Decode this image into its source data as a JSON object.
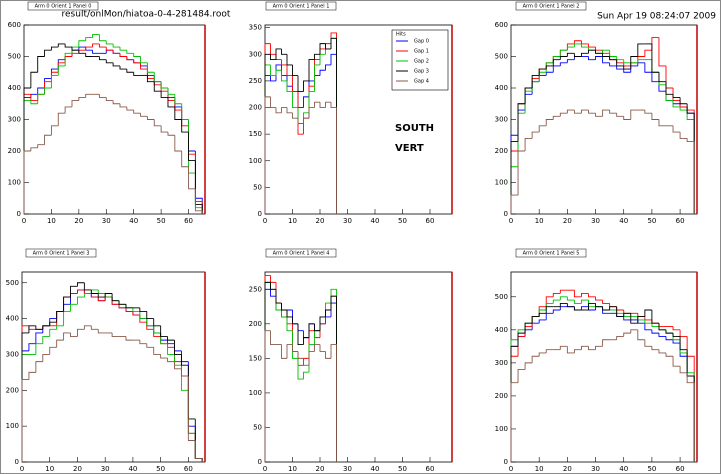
{
  "header": {
    "file": "result/onlMon/hiatoa-0-4-281484.root",
    "timestamp": "Sun Apr 19 08:24:07 2009"
  },
  "chart_data": [
    {
      "type": "histogram",
      "title": "Arm 0 Orient 1 Panel 0",
      "xlim": [
        0,
        66
      ],
      "ylim": [
        0,
        600
      ],
      "xticks": [
        0,
        10,
        20,
        30,
        40,
        50,
        60
      ],
      "yticks": [
        0,
        100,
        200,
        300,
        400,
        500,
        600
      ],
      "bins": [
        0,
        2.5,
        5,
        7.5,
        10,
        12.5,
        15,
        17.5,
        20,
        22.5,
        25,
        27.5,
        30,
        32.5,
        35,
        37.5,
        40,
        42.5,
        45,
        47.5,
        50,
        52.5,
        55,
        57.5,
        60,
        62.5,
        65
      ],
      "series": [
        {
          "name": "Gap 0",
          "color": "#0000ff",
          "values": [
            370,
            380,
            400,
            430,
            460,
            490,
            500,
            520,
            530,
            520,
            510,
            510,
            520,
            510,
            500,
            490,
            480,
            470,
            440,
            420,
            400,
            370,
            340,
            300,
            200,
            50
          ]
        },
        {
          "name": "Gap 1",
          "color": "#ff0000",
          "values": [
            380,
            360,
            380,
            420,
            450,
            480,
            500,
            510,
            520,
            530,
            540,
            530,
            520,
            510,
            500,
            490,
            480,
            460,
            430,
            410,
            390,
            360,
            330,
            280,
            190,
            40
          ]
        },
        {
          "name": "Gap 2",
          "color": "#00c000",
          "values": [
            360,
            350,
            380,
            400,
            440,
            470,
            510,
            530,
            550,
            560,
            570,
            550,
            540,
            530,
            520,
            510,
            500,
            480,
            450,
            420,
            400,
            380,
            350,
            300,
            130,
            20
          ]
        },
        {
          "name": "Gap 3",
          "color": "#000000",
          "values": [
            400,
            450,
            500,
            520,
            530,
            540,
            530,
            520,
            510,
            500,
            500,
            490,
            480,
            470,
            460,
            450,
            440,
            440,
            420,
            390,
            370,
            340,
            300,
            260,
            170,
            30
          ]
        },
        {
          "name": "Gap 4",
          "color": "#8b5a4a",
          "values": [
            200,
            210,
            220,
            250,
            280,
            320,
            340,
            360,
            370,
            380,
            380,
            370,
            360,
            350,
            340,
            330,
            320,
            310,
            300,
            280,
            260,
            250,
            200,
            150,
            80,
            10
          ]
        }
      ]
    },
    {
      "type": "histogram",
      "title": "Arm 0 Orient 1 Panel 1",
      "xlim": [
        0,
        68
      ],
      "ylim": [
        0,
        355
      ],
      "xticks": [
        0,
        10,
        20,
        30,
        40,
        50,
        60
      ],
      "yticks": [
        0,
        50,
        100,
        150,
        200,
        250,
        300,
        350
      ],
      "legend_title": "Hits",
      "annotations": [
        "SOUTH",
        "VERT"
      ],
      "bins": [
        0,
        2,
        4,
        6,
        8,
        10,
        12,
        14,
        16,
        18,
        20,
        22,
        24,
        26
      ],
      "series": [
        {
          "name": "Gap 0",
          "color": "#0000ff",
          "values": [
            260,
            250,
            280,
            260,
            240,
            230,
            200,
            220,
            250,
            260,
            270,
            280,
            300
          ]
        },
        {
          "name": "Gap 1",
          "color": "#ff0000",
          "values": [
            320,
            300,
            290,
            280,
            260,
            230,
            150,
            180,
            240,
            290,
            310,
            320,
            340
          ]
        },
        {
          "name": "Gap 2",
          "color": "#00c000",
          "values": [
            280,
            260,
            270,
            250,
            230,
            200,
            170,
            190,
            230,
            280,
            300,
            310,
            330
          ]
        },
        {
          "name": "Gap 3",
          "color": "#000000",
          "values": [
            300,
            290,
            310,
            300,
            280,
            260,
            230,
            250,
            290,
            300,
            320,
            310,
            330
          ]
        },
        {
          "name": "Gap 4",
          "color": "#8b5a4a",
          "values": [
            220,
            200,
            190,
            200,
            190,
            180,
            170,
            180,
            200,
            210,
            200,
            210,
            200
          ]
        }
      ]
    },
    {
      "type": "histogram",
      "title": "Arm 0 Orient 1 Panel 2",
      "xlim": [
        0,
        66
      ],
      "ylim": [
        0,
        600
      ],
      "xticks": [
        0,
        10,
        20,
        30,
        40,
        50,
        60
      ],
      "yticks": [
        0,
        100,
        200,
        300,
        400,
        500,
        600
      ],
      "bins": [
        0,
        2.5,
        5,
        7.5,
        10,
        12.5,
        15,
        17.5,
        20,
        22.5,
        25,
        27.5,
        30,
        32.5,
        35,
        37.5,
        40,
        42.5,
        45,
        47.5,
        50,
        52.5,
        55,
        57.5,
        60,
        62.5,
        65
      ],
      "series": [
        {
          "name": "Gap 0",
          "color": "#0000ff",
          "values": [
            250,
            330,
            380,
            420,
            440,
            450,
            470,
            480,
            490,
            500,
            500,
            490,
            500,
            480,
            470,
            460,
            450,
            470,
            480,
            450,
            420,
            390,
            360,
            350,
            340,
            320
          ]
        },
        {
          "name": "Gap 1",
          "color": "#ff0000",
          "values": [
            200,
            350,
            400,
            430,
            460,
            480,
            500,
            520,
            540,
            550,
            540,
            530,
            520,
            510,
            490,
            480,
            470,
            480,
            500,
            520,
            560,
            470,
            400,
            360,
            340,
            330
          ]
        },
        {
          "name": "Gap 2",
          "color": "#00c000",
          "values": [
            150,
            320,
            390,
            420,
            450,
            480,
            500,
            520,
            530,
            540,
            530,
            520,
            510,
            520,
            500,
            490,
            480,
            480,
            490,
            490,
            450,
            410,
            360,
            340,
            330,
            300
          ]
        },
        {
          "name": "Gap 3",
          "color": "#000000",
          "values": [
            230,
            350,
            400,
            440,
            460,
            470,
            490,
            500,
            510,
            500,
            510,
            520,
            510,
            500,
            490,
            470,
            460,
            500,
            540,
            540,
            450,
            420,
            380,
            370,
            350,
            320
          ]
        },
        {
          "name": "Gap 4",
          "color": "#8b5a4a",
          "values": [
            60,
            200,
            240,
            260,
            280,
            300,
            310,
            320,
            330,
            320,
            330,
            320,
            310,
            330,
            320,
            310,
            300,
            330,
            330,
            320,
            300,
            280,
            280,
            260,
            240,
            230
          ]
        }
      ]
    },
    {
      "type": "histogram",
      "title": "Arm 0 Orient 1 Panel 3",
      "xlim": [
        0,
        66
      ],
      "ylim": [
        0,
        530
      ],
      "xticks": [
        0,
        10,
        20,
        30,
        40,
        50,
        60
      ],
      "yticks": [
        0,
        100,
        200,
        300,
        400,
        500
      ],
      "bins": [
        0,
        2.5,
        5,
        7.5,
        10,
        12.5,
        15,
        17.5,
        20,
        22.5,
        25,
        27.5,
        30,
        32.5,
        35,
        37.5,
        40,
        42.5,
        45,
        47.5,
        50,
        52.5,
        55,
        57.5,
        60,
        62.5,
        65
      ],
      "series": [
        {
          "name": "Gap 0",
          "color": "#0000ff",
          "values": [
            310,
            330,
            360,
            380,
            400,
            420,
            440,
            470,
            480,
            470,
            460,
            450,
            460,
            440,
            430,
            420,
            410,
            400,
            380,
            360,
            340,
            330,
            310,
            280,
            100,
            10
          ]
        },
        {
          "name": "Gap 1",
          "color": "#ff0000",
          "values": [
            380,
            370,
            370,
            380,
            380,
            420,
            460,
            470,
            480,
            470,
            460,
            450,
            460,
            440,
            430,
            420,
            410,
            390,
            370,
            350,
            330,
            320,
            280,
            240,
            80,
            10
          ]
        },
        {
          "name": "Gap 2",
          "color": "#00c000",
          "values": [
            300,
            300,
            330,
            350,
            370,
            380,
            420,
            440,
            460,
            470,
            480,
            470,
            460,
            450,
            440,
            430,
            420,
            400,
            380,
            360,
            330,
            300,
            270,
            200,
            80,
            10
          ]
        },
        {
          "name": "Gap 3",
          "color": "#000000",
          "values": [
            360,
            380,
            370,
            380,
            390,
            420,
            460,
            490,
            500,
            480,
            470,
            460,
            470,
            450,
            440,
            430,
            430,
            420,
            400,
            380,
            350,
            340,
            300,
            270,
            120,
            10
          ]
        },
        {
          "name": "Gap 4",
          "color": "#8b5a4a",
          "values": [
            230,
            250,
            280,
            300,
            320,
            340,
            360,
            350,
            370,
            380,
            370,
            360,
            360,
            350,
            350,
            340,
            340,
            330,
            320,
            300,
            290,
            280,
            260,
            240,
            60,
            10
          ]
        }
      ]
    },
    {
      "type": "histogram",
      "title": "Arm 0 Orient 1 Panel 4",
      "xlim": [
        0,
        68
      ],
      "ylim": [
        0,
        275
      ],
      "xticks": [
        0,
        10,
        20,
        30,
        40,
        50,
        60
      ],
      "yticks": [
        0,
        50,
        100,
        150,
        200,
        250
      ],
      "bins": [
        0,
        2,
        4,
        6,
        8,
        10,
        12,
        14,
        16,
        18,
        20,
        22,
        24,
        26
      ],
      "series": [
        {
          "name": "Gap 0",
          "color": "#0000ff",
          "values": [
            250,
            240,
            220,
            210,
            220,
            200,
            190,
            180,
            200,
            190,
            200,
            210,
            230
          ]
        },
        {
          "name": "Gap 1",
          "color": "#ff0000",
          "values": [
            270,
            260,
            230,
            220,
            200,
            160,
            140,
            150,
            190,
            180,
            200,
            220,
            240
          ]
        },
        {
          "name": "Gap 2",
          "color": "#00c000",
          "values": [
            260,
            250,
            220,
            210,
            190,
            150,
            120,
            130,
            170,
            190,
            210,
            230,
            250
          ]
        },
        {
          "name": "Gap 3",
          "color": "#000000",
          "values": [
            260,
            250,
            230,
            220,
            210,
            200,
            170,
            180,
            200,
            190,
            210,
            220,
            240
          ]
        },
        {
          "name": "Gap 4",
          "color": "#8b5a4a",
          "values": [
            190,
            170,
            170,
            150,
            170,
            160,
            150,
            140,
            160,
            170,
            160,
            150,
            170
          ]
        }
      ]
    },
    {
      "type": "histogram",
      "title": "Arm 0 Orient 1 Panel 5",
      "xlim": [
        0,
        66
      ],
      "ylim": [
        0,
        575
      ],
      "xticks": [
        0,
        10,
        20,
        30,
        40,
        50,
        60
      ],
      "yticks": [
        0,
        100,
        200,
        300,
        400,
        500
      ],
      "bins": [
        0,
        2.5,
        5,
        7.5,
        10,
        12.5,
        15,
        17.5,
        20,
        22.5,
        25,
        27.5,
        30,
        32.5,
        35,
        37.5,
        40,
        42.5,
        45,
        47.5,
        50,
        52.5,
        55,
        57.5,
        60,
        62.5,
        65
      ],
      "series": [
        {
          "name": "Gap 0",
          "color": "#0000ff",
          "values": [
            350,
            380,
            400,
            420,
            430,
            450,
            460,
            470,
            470,
            460,
            470,
            460,
            470,
            450,
            450,
            440,
            430,
            430,
            420,
            400,
            390,
            380,
            370,
            360,
            320,
            260
          ]
        },
        {
          "name": "Gap 1",
          "color": "#ff0000",
          "values": [
            320,
            380,
            410,
            440,
            470,
            500,
            510,
            520,
            520,
            500,
            510,
            500,
            490,
            480,
            470,
            460,
            450,
            450,
            440,
            430,
            420,
            410,
            410,
            400,
            380,
            320
          ]
        },
        {
          "name": "Gap 2",
          "color": "#00c000",
          "values": [
            370,
            400,
            420,
            440,
            460,
            480,
            490,
            500,
            490,
            480,
            490,
            470,
            470,
            460,
            460,
            450,
            440,
            440,
            430,
            420,
            410,
            400,
            390,
            370,
            330,
            270
          ]
        },
        {
          "name": "Gap 3",
          "color": "#000000",
          "values": [
            350,
            390,
            420,
            440,
            450,
            470,
            470,
            480,
            470,
            460,
            460,
            480,
            470,
            460,
            470,
            440,
            450,
            420,
            440,
            460,
            420,
            400,
            390,
            380,
            340,
            260
          ]
        },
        {
          "name": "Gap 4",
          "color": "#8b5a4a",
          "values": [
            240,
            280,
            300,
            320,
            330,
            340,
            340,
            350,
            330,
            340,
            350,
            340,
            350,
            370,
            370,
            380,
            390,
            400,
            370,
            350,
            340,
            330,
            320,
            290,
            270,
            240
          ]
        }
      ]
    }
  ]
}
